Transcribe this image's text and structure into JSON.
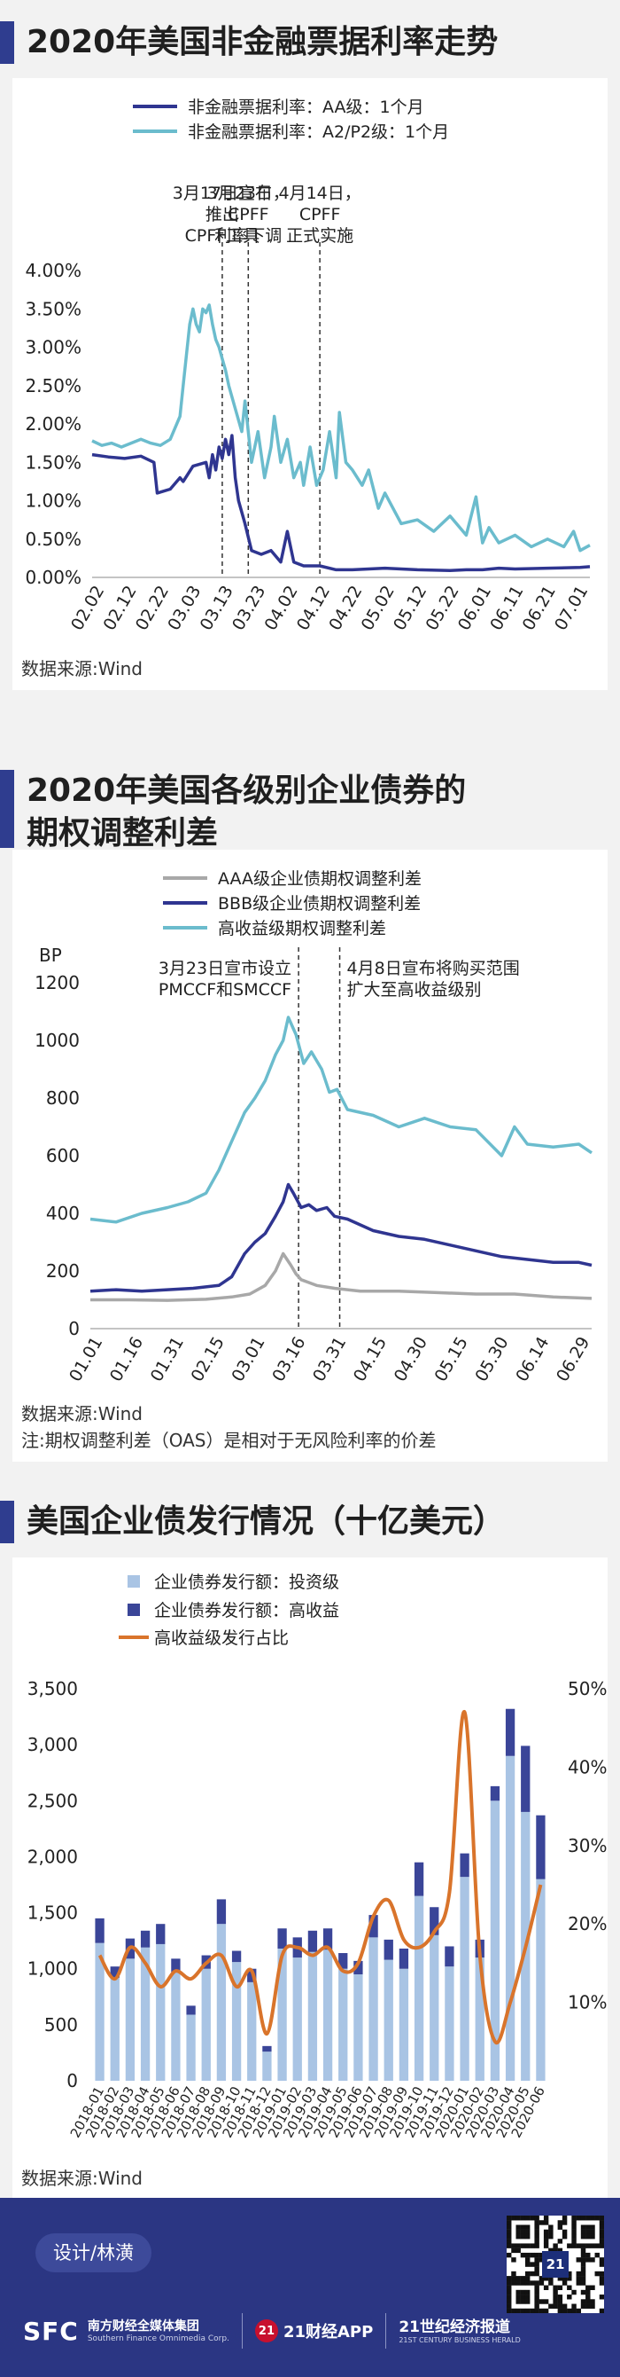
{
  "charts": {
    "c1": {
      "title": "2020年美国非金融票据利率走势",
      "source": "数据来源:Wind"
    },
    "c2": {
      "title_line1": "2020年美国各级别企业债券的",
      "title_line2": "期权调整利差",
      "source": "数据来源:Wind",
      "note": "注:期权调整利差（OAS）是相对于无风险利率的价差"
    },
    "c3": {
      "title": "美国企业债发行情况（十亿美元）",
      "source": "数据来源:Wind"
    }
  },
  "footer": {
    "designer": "设计/林潢",
    "sfc": "SFC",
    "group_cn": "南方财经全媒体集团",
    "group_en": "Southern Finance Omnimedia Corp.",
    "app_badge": "21",
    "app_label": "21财经APP",
    "herald_cn": "21世纪经济报道",
    "herald_en": "21ST CENTURY BUSINESS HERALD",
    "qr_badge": "21"
  },
  "chart_data": [
    {
      "type": "line",
      "ylim": [
        0,
        4
      ],
      "yticks": [
        "0.00%",
        "0.50%",
        "1.00%",
        "1.50%",
        "2.00%",
        "2.50%",
        "3.00%",
        "3.50%",
        "4.00%"
      ],
      "x_ticks": [
        "02.02",
        "02.12",
        "02.22",
        "03.03",
        "03.13",
        "03.23",
        "04.02",
        "04.12",
        "04.22",
        "05.02",
        "05.12",
        "05.22",
        "06.01",
        "06.11",
        "06.21",
        "07.01"
      ],
      "legend": "top",
      "series": [
        {
          "name": "非金融票据利率：AA级：1个月",
          "color": "#2f3590",
          "x": [
            0,
            5,
            10,
            15,
            19,
            20,
            24,
            27,
            28,
            31,
            35,
            36,
            37,
            38,
            39,
            40,
            41,
            42,
            43,
            44,
            45,
            47,
            49,
            52,
            55,
            58,
            60,
            62,
            65,
            70,
            75,
            80,
            90,
            100,
            110,
            115,
            120,
            125,
            130,
            140,
            150,
            153
          ],
          "y": [
            1.6,
            1.57,
            1.55,
            1.58,
            1.5,
            1.1,
            1.15,
            1.3,
            1.25,
            1.45,
            1.5,
            1.3,
            1.6,
            1.4,
            1.7,
            1.55,
            1.8,
            1.6,
            1.85,
            1.3,
            1.0,
            0.7,
            0.35,
            0.3,
            0.35,
            0.2,
            0.6,
            0.2,
            0.15,
            0.15,
            0.1,
            0.1,
            0.12,
            0.1,
            0.09,
            0.1,
            0.1,
            0.12,
            0.11,
            0.12,
            0.13,
            0.14
          ]
        },
        {
          "name": "非金融票据利率：A2/P2级：1个月",
          "color": "#6bbccd",
          "x": [
            0,
            3,
            6,
            9,
            12,
            15,
            18,
            21,
            24,
            27,
            28,
            29,
            30,
            31,
            32,
            33,
            34,
            35,
            36,
            37,
            38,
            39,
            40,
            41,
            42,
            44,
            46,
            47,
            49,
            51,
            53,
            55,
            56,
            58,
            60,
            62,
            64,
            65,
            67,
            69,
            71,
            73,
            75,
            76,
            78,
            80,
            83,
            85,
            88,
            90,
            95,
            100,
            105,
            110,
            115,
            118,
            120,
            122,
            125,
            130,
            135,
            140,
            145,
            148,
            150,
            153
          ],
          "y": [
            1.78,
            1.72,
            1.75,
            1.7,
            1.75,
            1.8,
            1.75,
            1.72,
            1.8,
            2.1,
            2.5,
            2.9,
            3.3,
            3.5,
            3.3,
            3.2,
            3.5,
            3.45,
            3.55,
            3.3,
            3.1,
            3.0,
            2.85,
            2.7,
            2.5,
            2.2,
            1.9,
            2.3,
            1.5,
            1.9,
            1.3,
            1.7,
            2.1,
            1.5,
            1.8,
            1.3,
            1.5,
            1.2,
            1.7,
            1.2,
            1.4,
            1.9,
            1.3,
            2.15,
            1.5,
            1.4,
            1.2,
            1.4,
            0.9,
            1.1,
            0.7,
            0.75,
            0.6,
            0.8,
            0.55,
            1.05,
            0.45,
            0.65,
            0.45,
            0.55,
            0.4,
            0.5,
            0.4,
            0.6,
            0.35,
            0.42
          ]
        }
      ],
      "annotations": [
        {
          "x": 40,
          "text": "3月17日宣布|推出|CPFF工具"
        },
        {
          "x": 48,
          "text": "3月23日，|CPFF|利率下调"
        },
        {
          "x": 70,
          "text": "4月14日，|CPFF|正式实施"
        }
      ]
    },
    {
      "type": "line",
      "ylabel": "BP",
      "ylim": [
        0,
        1200
      ],
      "yticks": [
        "0",
        "200",
        "400",
        "600",
        "800",
        "1000",
        "1200"
      ],
      "x_ticks": [
        "01.01",
        "01.16",
        "01.31",
        "02.15",
        "03.01",
        "03.16",
        "03.31",
        "04.15",
        "04.30",
        "05.15",
        "05.30",
        "06.14",
        "06.29"
      ],
      "legend": "top",
      "series": [
        {
          "name": "AAA级企业债期权调整利差",
          "color": "#a8a8a8",
          "x": [
            0,
            15,
            30,
            45,
            55,
            62,
            68,
            72,
            75,
            78,
            80,
            82,
            85,
            88,
            95,
            105,
            120,
            135,
            150,
            165,
            180,
            195
          ],
          "y": [
            100,
            100,
            98,
            102,
            110,
            120,
            150,
            200,
            260,
            220,
            190,
            170,
            160,
            150,
            140,
            130,
            130,
            125,
            120,
            120,
            110,
            105
          ]
        },
        {
          "name": "BBB级企业债期权调整利差",
          "color": "#2f3590",
          "x": [
            0,
            10,
            20,
            30,
            40,
            50,
            55,
            60,
            64,
            68,
            72,
            75,
            77,
            79,
            82,
            85,
            88,
            92,
            95,
            100,
            110,
            120,
            130,
            140,
            150,
            160,
            170,
            180,
            190,
            195
          ],
          "y": [
            130,
            135,
            130,
            135,
            140,
            150,
            180,
            260,
            300,
            330,
            390,
            440,
            500,
            470,
            420,
            430,
            410,
            420,
            390,
            380,
            340,
            320,
            310,
            290,
            270,
            250,
            240,
            230,
            230,
            220
          ]
        },
        {
          "name": "高收益级期权调整利差",
          "color": "#6bbccd",
          "x": [
            0,
            10,
            20,
            30,
            38,
            45,
            50,
            55,
            60,
            64,
            68,
            72,
            75,
            77,
            80,
            83,
            86,
            90,
            93,
            96,
            100,
            110,
            120,
            130,
            140,
            150,
            160,
            165,
            170,
            180,
            190,
            195
          ],
          "y": [
            380,
            370,
            400,
            420,
            440,
            470,
            550,
            650,
            750,
            800,
            860,
            950,
            1000,
            1080,
            1020,
            920,
            960,
            900,
            820,
            830,
            760,
            740,
            700,
            730,
            700,
            690,
            600,
            700,
            640,
            630,
            640,
            610
          ]
        }
      ],
      "annotations": [
        {
          "x": 81,
          "text": "3月23日宣市设立|PMCCF和SMCCF"
        },
        {
          "x": 97,
          "text": "4月8日宣布将购买范围|扩大至高收益级别"
        }
      ]
    },
    {
      "type": "bar",
      "ylim": [
        0,
        3500
      ],
      "y2lim": [
        0,
        50
      ],
      "yticks": [
        "0",
        "500",
        "1,000",
        "1,500",
        "2,000",
        "2,500",
        "3,000",
        "3,500"
      ],
      "y2ticks": [
        "10%",
        "20%",
        "30%",
        "40%",
        "50%"
      ],
      "legend": "top",
      "categories": [
        "2018-01",
        "2018-02",
        "2018-03",
        "2018-04",
        "2018-05",
        "2018-06",
        "2018-07",
        "2018-08",
        "2018-09",
        "2018-10",
        "2018-11",
        "2018-12",
        "2019-01",
        "2019-02",
        "2019-03",
        "2019-04",
        "2019-05",
        "2019-06",
        "2019-07",
        "2019-08",
        "2019-09",
        "2019-10",
        "2019-11",
        "2019-12",
        "2020-01",
        "2020-02",
        "2020-03",
        "2020-04",
        "2020-05",
        "2020-06"
      ],
      "series": [
        {
          "name": "企业债券发行额：投资级",
          "color": "#a9c4e4",
          "values": [
            1230,
            920,
            1090,
            1190,
            1220,
            970,
            590,
            1000,
            1400,
            1060,
            880,
            260,
            1180,
            1100,
            1150,
            1170,
            1000,
            950,
            1280,
            1080,
            1000,
            1650,
            1300,
            1020,
            1820,
            1100,
            2500,
            2900,
            2400,
            1800
          ]
        },
        {
          "name": "企业债券发行额：高收益",
          "color": "#3a4598",
          "values": [
            220,
            100,
            180,
            150,
            180,
            120,
            80,
            120,
            220,
            100,
            120,
            50,
            180,
            180,
            190,
            190,
            140,
            120,
            200,
            180,
            180,
            300,
            250,
            180,
            210,
            160,
            130,
            420,
            590,
            570
          ]
        },
        {
          "name": "高收益级发行占比",
          "color": "#d9742b",
          "values": [
            16,
            13,
            17,
            15,
            12,
            14,
            13,
            15,
            16,
            12,
            14,
            6,
            16,
            17,
            16,
            17,
            14,
            15,
            21,
            23,
            18,
            17,
            19,
            24,
            47,
            16,
            5,
            10,
            17,
            25
          ]
        }
      ]
    }
  ]
}
